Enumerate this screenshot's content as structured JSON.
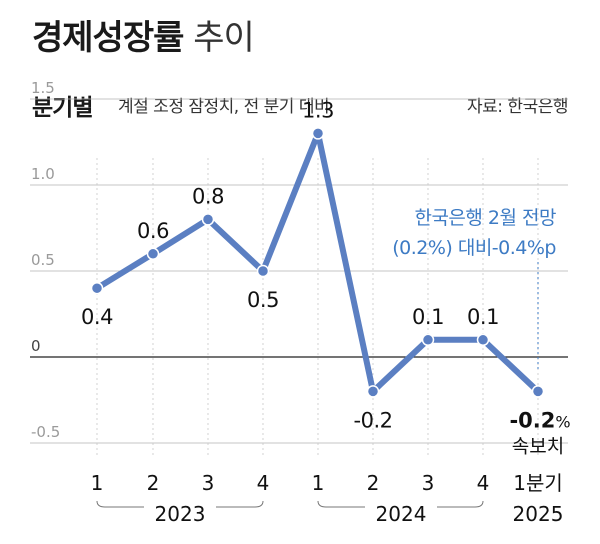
{
  "header": {
    "title_bold": "경제성장률",
    "title_light": "추이",
    "subtitle_bold": "분기별",
    "subtitle_desc": "계절 조정 잠정치, 전 분기 대비",
    "source": "자료: 한국은행"
  },
  "chart_data": {
    "type": "line",
    "ylim": [
      -0.5,
      1.5
    ],
    "yticks": [
      "1.5",
      "1.0",
      "0.5",
      "0",
      "-0.5"
    ],
    "ytick_values": [
      1.5,
      1.0,
      0.5,
      0,
      -0.5
    ],
    "categories": [
      "1",
      "2",
      "3",
      "4",
      "1",
      "2",
      "3",
      "4",
      "1분기"
    ],
    "year_groups": [
      "2023",
      "2024",
      "2025"
    ],
    "values": [
      0.4,
      0.6,
      0.8,
      0.5,
      1.3,
      -0.2,
      0.1,
      0.1,
      -0.2
    ],
    "value_labels": [
      "0.4",
      "0.6",
      "0.8",
      "0.5",
      "1.3",
      "-0.2",
      "0.1",
      "0.1",
      "-0.2"
    ],
    "last_label_unit": "%",
    "last_label_note": "속보치",
    "annotation_lines": [
      "한국은행 2월 전망",
      "(0.2%) 대비-0.4%p"
    ],
    "colors": {
      "line": "#5b7fc2",
      "annotation": "#3d7bc4",
      "grid": "#b0b0b0",
      "zero": "#222222"
    }
  }
}
